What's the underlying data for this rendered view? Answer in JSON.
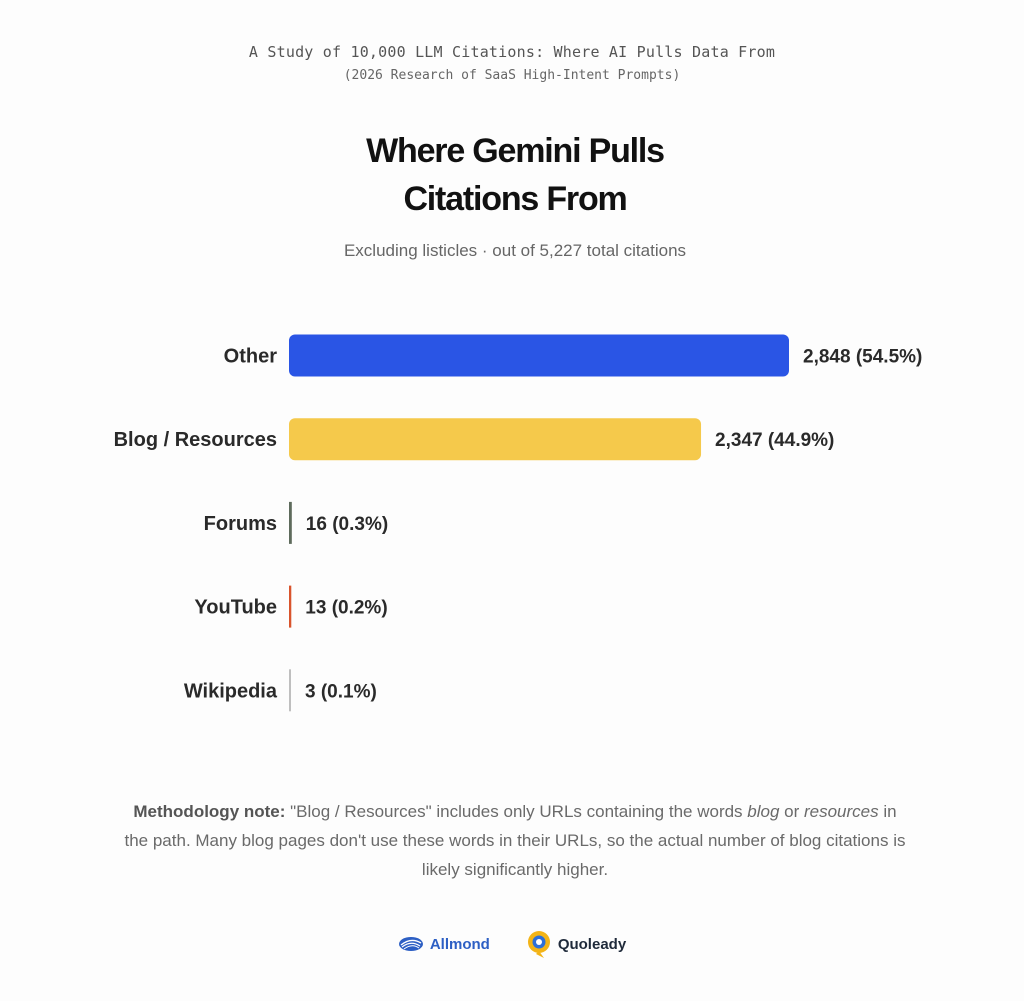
{
  "header": {
    "kicker": "A Study of 10,000 LLM Citations: Where AI Pulls Data From",
    "kicker_sub": "(2026 Research of SaaS High-Intent Prompts)"
  },
  "chart_data": {
    "type": "bar",
    "orientation": "horizontal",
    "title_line1": "Where Gemini Pulls",
    "title_line2": "Citations From",
    "subtitle": "Excluding listicles · out of 5,227 total citations",
    "categories": [
      "Other",
      "Blog / Resources",
      "Forums",
      "YouTube",
      "Wikipedia"
    ],
    "values": [
      2848,
      2347,
      16,
      13,
      3
    ],
    "percents": [
      54.5,
      44.9,
      0.3,
      0.2,
      0.1
    ],
    "value_labels": [
      "2,848 (54.5%)",
      "2,347 (44.9%)",
      "16 (0.3%)",
      "13 (0.2%)",
      "3 (0.1%)"
    ],
    "colors": [
      "#2a55e5",
      "#f5c94b",
      "#5e6b5c",
      "#d9542c",
      "#bfbfbf"
    ],
    "xlim": [
      0,
      2848
    ],
    "grid": false,
    "legend": "none"
  },
  "note": {
    "bold_label": "Methodology note:",
    "text_1": " \"Blog / Resources\" includes only URLs containing the words ",
    "em_1": "blog",
    "text_2": " or ",
    "em_2": "resources",
    "text_3": " in the path. Many blog pages don't use these words in their URLs, so the actual number of blog citations is likely significantly higher."
  },
  "logos": {
    "allmond": "Allmond",
    "quoleady": "Quoleady",
    "allmond_color": "#2d5fc4",
    "quoleady_color": "#f3b417"
  }
}
